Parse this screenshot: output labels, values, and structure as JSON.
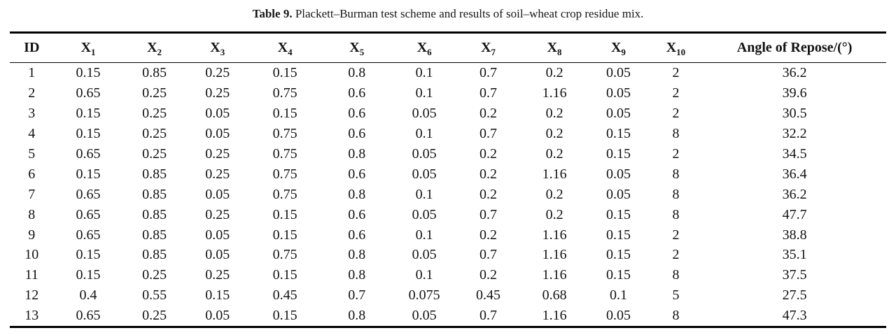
{
  "caption": {
    "label": "Table 9.",
    "text": "Plackett–Burman test scheme and results of soil–wheat crop residue mix."
  },
  "table": {
    "columns": [
      {
        "label": "ID",
        "sub": ""
      },
      {
        "label": "X",
        "sub": "1"
      },
      {
        "label": "X",
        "sub": "2"
      },
      {
        "label": "X",
        "sub": "3"
      },
      {
        "label": "X",
        "sub": "4"
      },
      {
        "label": "X",
        "sub": "5"
      },
      {
        "label": "X",
        "sub": "6"
      },
      {
        "label": "X",
        "sub": "7"
      },
      {
        "label": "X",
        "sub": "8"
      },
      {
        "label": "X",
        "sub": "9"
      },
      {
        "label": "X",
        "sub": "10"
      },
      {
        "label": "Angle of Repose/(°)",
        "sub": ""
      }
    ],
    "rows": [
      [
        "1",
        "0.15",
        "0.85",
        "0.25",
        "0.15",
        "0.8",
        "0.1",
        "0.7",
        "0.2",
        "0.05",
        "2",
        "36.2"
      ],
      [
        "2",
        "0.65",
        "0.25",
        "0.25",
        "0.75",
        "0.6",
        "0.1",
        "0.7",
        "1.16",
        "0.05",
        "2",
        "39.6"
      ],
      [
        "3",
        "0.15",
        "0.25",
        "0.05",
        "0.15",
        "0.6",
        "0.05",
        "0.2",
        "0.2",
        "0.05",
        "2",
        "30.5"
      ],
      [
        "4",
        "0.15",
        "0.25",
        "0.05",
        "0.75",
        "0.6",
        "0.1",
        "0.7",
        "0.2",
        "0.15",
        "8",
        "32.2"
      ],
      [
        "5",
        "0.65",
        "0.25",
        "0.25",
        "0.75",
        "0.8",
        "0.05",
        "0.2",
        "0.2",
        "0.15",
        "2",
        "34.5"
      ],
      [
        "6",
        "0.15",
        "0.85",
        "0.25",
        "0.75",
        "0.6",
        "0.05",
        "0.2",
        "1.16",
        "0.05",
        "8",
        "36.4"
      ],
      [
        "7",
        "0.65",
        "0.85",
        "0.05",
        "0.75",
        "0.8",
        "0.1",
        "0.2",
        "0.2",
        "0.05",
        "8",
        "36.2"
      ],
      [
        "8",
        "0.65",
        "0.85",
        "0.25",
        "0.15",
        "0.6",
        "0.05",
        "0.7",
        "0.2",
        "0.15",
        "8",
        "47.7"
      ],
      [
        "9",
        "0.65",
        "0.85",
        "0.05",
        "0.15",
        "0.6",
        "0.1",
        "0.2",
        "1.16",
        "0.15",
        "2",
        "38.8"
      ],
      [
        "10",
        "0.15",
        "0.85",
        "0.05",
        "0.75",
        "0.8",
        "0.05",
        "0.7",
        "1.16",
        "0.15",
        "2",
        "35.1"
      ],
      [
        "11",
        "0.15",
        "0.25",
        "0.25",
        "0.15",
        "0.8",
        "0.1",
        "0.2",
        "1.16",
        "0.15",
        "8",
        "37.5"
      ],
      [
        "12",
        "0.4",
        "0.55",
        "0.15",
        "0.45",
        "0.7",
        "0.075",
        "0.45",
        "0.68",
        "0.1",
        "5",
        "27.5"
      ],
      [
        "13",
        "0.65",
        "0.25",
        "0.05",
        "0.15",
        "0.8",
        "0.05",
        "0.7",
        "1.16",
        "0.05",
        "8",
        "47.3"
      ]
    ]
  }
}
